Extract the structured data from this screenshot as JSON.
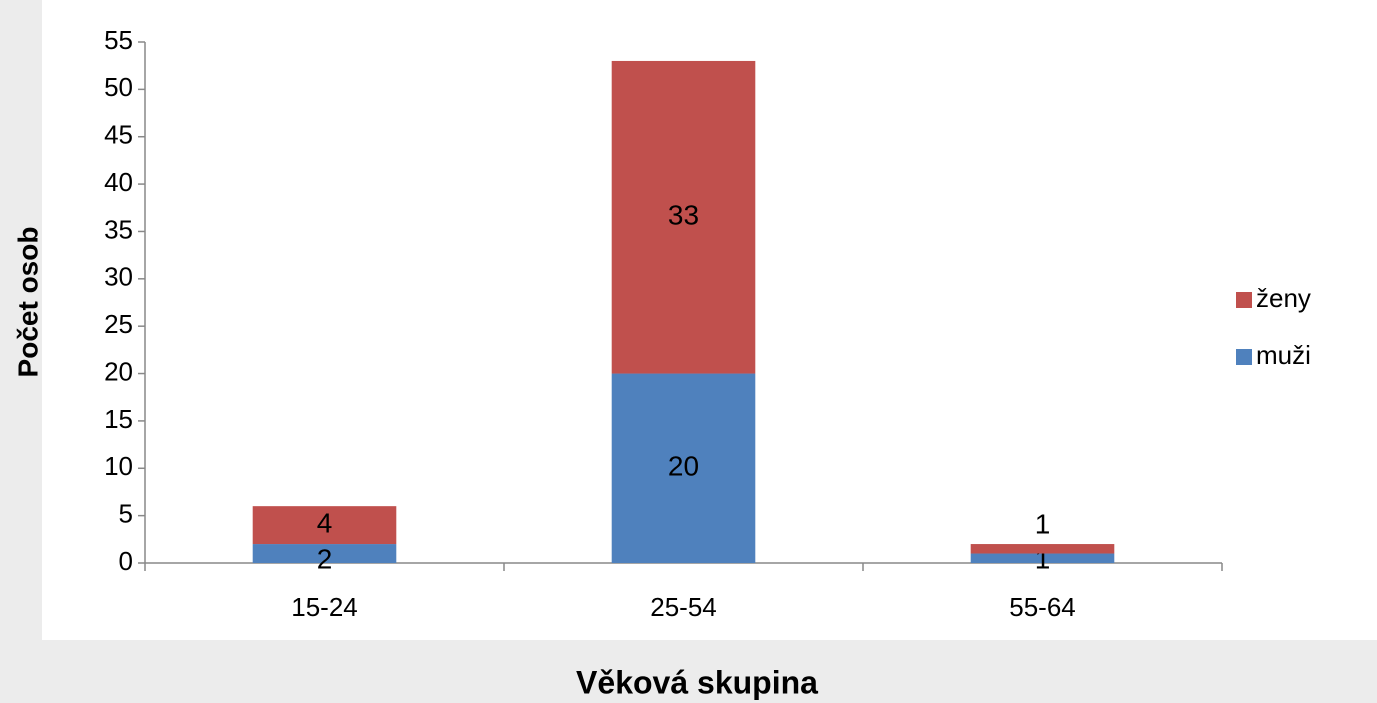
{
  "chart_data": {
    "type": "stacked-bar",
    "xlabel": "Věková skupina",
    "ylabel": "Počet osob",
    "categories": [
      "15-24",
      "25-54",
      "55-64"
    ],
    "series": [
      {
        "name": "muži",
        "color": "#4f81bd",
        "values": [
          2,
          20,
          1
        ]
      },
      {
        "name": "ženy",
        "color": "#c0504d",
        "values": [
          4,
          33,
          1
        ]
      }
    ],
    "ylim": [
      0,
      55
    ],
    "yticks": [
      0,
      5,
      10,
      15,
      20,
      25,
      30,
      35,
      40,
      45,
      50,
      55
    ],
    "legend": "right"
  }
}
